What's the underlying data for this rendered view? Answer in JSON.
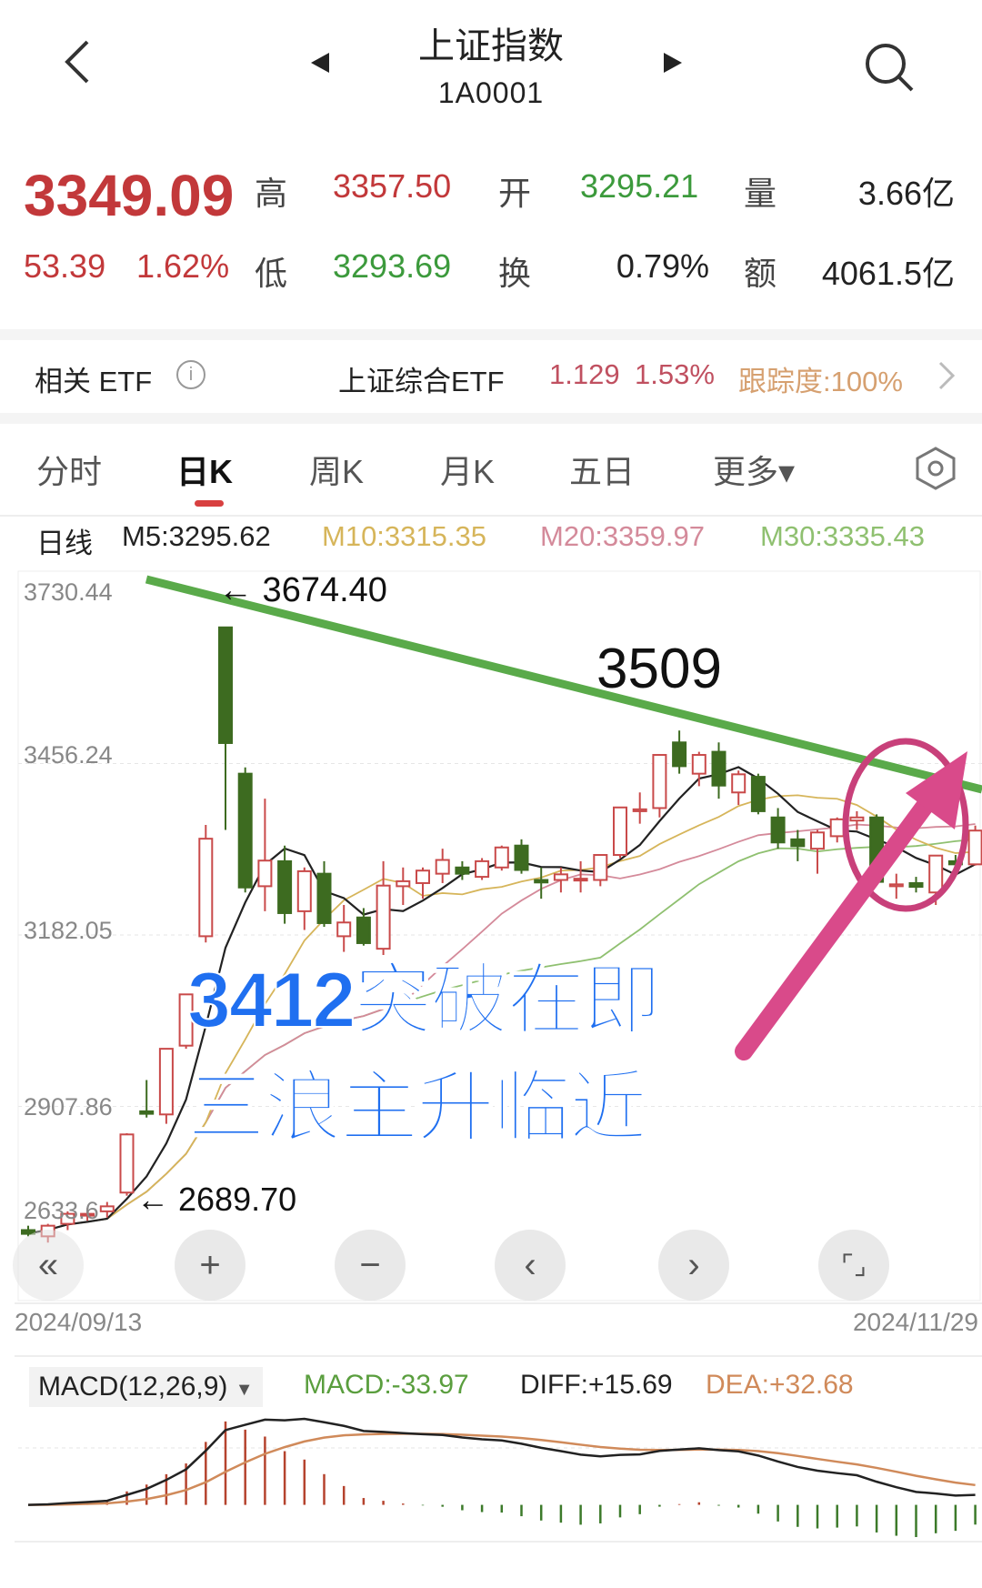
{
  "header": {
    "title": "上证指数",
    "code": "1A0001",
    "back_icon": "chevron-left-icon",
    "prev_icon": "triangle-left-icon",
    "next_icon": "triangle-right-icon",
    "search_icon": "search-icon"
  },
  "quote": {
    "price": "3349.09",
    "change": "53.39",
    "change_pct": "1.62%",
    "high_label": "高",
    "high": "3357.50",
    "open_label": "开",
    "open": "3295.21",
    "volume_label": "量",
    "volume": "3.66亿",
    "low_label": "低",
    "low": "3293.69",
    "turnover_label": "换",
    "turnover": "0.79%",
    "amount_label": "额",
    "amount": "4061.5亿",
    "colors": {
      "up": "#c2383a",
      "down": "#3c9a3c"
    }
  },
  "etf": {
    "label": "相关 ETF",
    "info_icon": "info-icon",
    "name": "上证综合ETF",
    "price": "1.129",
    "pct": "1.53%",
    "tracking": "跟踪度:100%",
    "chevron_icon": "chevron-right-icon"
  },
  "tabs": [
    {
      "label": "分时"
    },
    {
      "label": "日K",
      "active": true
    },
    {
      "label": "周K"
    },
    {
      "label": "月K"
    },
    {
      "label": "五日"
    },
    {
      "label": "更多▾"
    }
  ],
  "settings_icon": "hexagon-settings-icon",
  "ma_legend": {
    "title": "日线",
    "m5": "M5:3295.62",
    "m10": "M10:3315.35",
    "m20": "M20:3359.97",
    "m30": "M30:3335.43",
    "colors": {
      "m5": "#222222",
      "m10": "#d6b55a",
      "m20": "#d48a9a",
      "m30": "#8fc070"
    }
  },
  "controls": {
    "rewind_icon": "double-chevron-left-icon",
    "zoom_in_icon": "plus-icon",
    "zoom_out_icon": "minus-icon",
    "left_icon": "chevron-left-icon",
    "right_icon": "chevron-right-icon",
    "fullscreen_icon": "fullscreen-icon"
  },
  "chart_data": {
    "type": "candlestick",
    "y_ticks": [
      "3730.44",
      "3456.24",
      "3182.05",
      "2907.86",
      "2633.6"
    ],
    "ylim": [
      2633.6,
      3730.44
    ],
    "x_start": "2024/09/13",
    "x_end": "2024/11/29",
    "annotations": {
      "peak": "← 3674.40",
      "high2": "3509",
      "low": "← 2689.70",
      "headline1": "3412突破在即",
      "headline2": "三浪主升临近"
    },
    "trendline_color": "#5aaa4a",
    "circle_color": "#c8407a",
    "arrow_color": "#d94a8a",
    "ohlc": [
      [
        2710,
        2717,
        2700,
        2704
      ],
      [
        2700,
        2720,
        2690,
        2717
      ],
      [
        2720,
        2740,
        2710,
        2736
      ],
      [
        2736,
        2745,
        2725,
        2736
      ],
      [
        2740,
        2755,
        2730,
        2748
      ],
      [
        2770,
        2865,
        2765,
        2863
      ],
      [
        2900,
        2950,
        2890,
        2896
      ],
      [
        2895,
        3000,
        2880,
        3000
      ],
      [
        3005,
        3087,
        3000,
        3087
      ],
      [
        3180,
        3358,
        3170,
        3336
      ],
      [
        3674,
        3674,
        3350,
        3489
      ],
      [
        3440,
        3450,
        3250,
        3258
      ],
      [
        3260,
        3400,
        3220,
        3301
      ],
      [
        3300,
        3325,
        3200,
        3217
      ],
      [
        3220,
        3290,
        3190,
        3284
      ],
      [
        3280,
        3300,
        3195,
        3201
      ],
      [
        3180,
        3230,
        3155,
        3202
      ],
      [
        3210,
        3225,
        3165,
        3169
      ],
      [
        3160,
        3300,
        3150,
        3261
      ],
      [
        3260,
        3290,
        3230,
        3268
      ],
      [
        3265,
        3290,
        3240,
        3285
      ],
      [
        3280,
        3320,
        3265,
        3302
      ],
      [
        3290,
        3300,
        3270,
        3280
      ],
      [
        3275,
        3305,
        3270,
        3300
      ],
      [
        3290,
        3325,
        3285,
        3322
      ],
      [
        3325,
        3335,
        3280,
        3286
      ],
      [
        3270,
        3290,
        3240,
        3266
      ],
      [
        3270,
        3290,
        3250,
        3279
      ],
      [
        3270,
        3300,
        3250,
        3272
      ],
      [
        3270,
        3310,
        3260,
        3310
      ],
      [
        3310,
        3387,
        3305,
        3386
      ],
      [
        3380,
        3410,
        3360,
        3383
      ],
      [
        3385,
        3471,
        3370,
        3470
      ],
      [
        3490,
        3509,
        3440,
        3452
      ],
      [
        3440,
        3475,
        3420,
        3470
      ],
      [
        3475,
        3490,
        3400,
        3421
      ],
      [
        3410,
        3445,
        3390,
        3439
      ],
      [
        3435,
        3440,
        3375,
        3380
      ],
      [
        3370,
        3385,
        3320,
        3330
      ],
      [
        3335,
        3350,
        3300,
        3324
      ],
      [
        3320,
        3350,
        3280,
        3346
      ],
      [
        3340,
        3370,
        3330,
        3367
      ],
      [
        3365,
        3380,
        3350,
        3370
      ],
      [
        3370,
        3375,
        3265,
        3267
      ],
      [
        3260,
        3280,
        3240,
        3263
      ],
      [
        3265,
        3275,
        3250,
        3259
      ],
      [
        3250,
        3310,
        3230,
        3309
      ],
      [
        3300,
        3310,
        3290,
        3295
      ],
      [
        3295,
        3357,
        3293,
        3349
      ]
    ]
  },
  "macd": {
    "label": "MACD(12,26,9)",
    "dropdown_icon": "caret-down-icon",
    "macd": "MACD:-33.97",
    "diff": "DIFF:+15.69",
    "dea": "DEA:+32.68",
    "colors": {
      "macd": "#5a9e3e",
      "diff": "#222222",
      "dea": "#d08a5a",
      "up": "#b5432e",
      "down": "#3c7a2a"
    }
  }
}
